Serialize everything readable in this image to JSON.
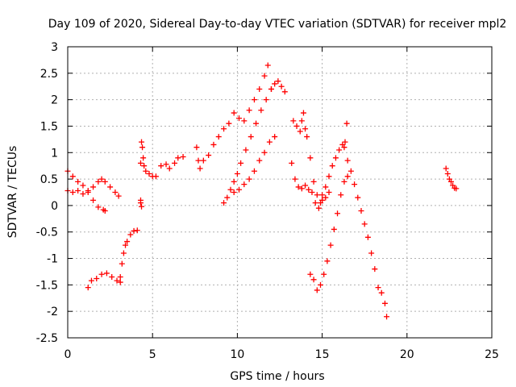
{
  "chart_data": {
    "type": "scatter",
    "title": "Day 109 of 2020, Sidereal Day-to-day VTEC variation (SDTVAR) for receiver mpl2",
    "xlabel": "GPS time / hours",
    "ylabel": "SDTVAR / TECUs",
    "xlim": [
      0,
      25
    ],
    "ylim": [
      -2.5,
      3
    ],
    "xticks": [
      0,
      5,
      10,
      15,
      20,
      25
    ],
    "yticks": [
      -2.5,
      -2,
      -1.5,
      -1,
      -0.5,
      0,
      0.5,
      1,
      1.5,
      2,
      2.5,
      3
    ],
    "grid": true,
    "marker": "+",
    "color": "#ff0000",
    "series": [
      {
        "x": [
          0.0,
          0.3,
          0.6,
          0.9,
          1.2,
          1.5,
          1.8,
          2.1,
          2.2
        ],
        "y": [
          0.65,
          0.55,
          0.45,
          0.38,
          0.25,
          0.1,
          -0.03,
          -0.08,
          -0.1
        ]
      },
      {
        "x": [
          0.0,
          0.3,
          0.6,
          0.9,
          1.2,
          1.5,
          1.8,
          2.0,
          2.2,
          2.5,
          2.8,
          3.0
        ],
        "y": [
          0.28,
          0.25,
          0.28,
          0.22,
          0.28,
          0.35,
          0.45,
          0.5,
          0.45,
          0.35,
          0.25,
          0.18
        ]
      },
      {
        "x": [
          1.2,
          1.4,
          1.7,
          2.0,
          2.3,
          2.6,
          2.9,
          3.1
        ],
        "y": [
          -1.55,
          -1.42,
          -1.38,
          -1.3,
          -1.28,
          -1.35,
          -1.42,
          -1.45
        ]
      },
      {
        "x": [
          3.1,
          3.2,
          3.3,
          3.4,
          3.5,
          3.7,
          3.9,
          4.1
        ],
        "y": [
          -1.35,
          -1.1,
          -0.9,
          -0.75,
          -0.68,
          -0.55,
          -0.48,
          -0.47
        ]
      },
      {
        "x": [
          4.3,
          4.3,
          4.35
        ],
        "y": [
          0.1,
          0.05,
          -0.02
        ]
      },
      {
        "x": [
          4.3,
          4.35,
          4.4,
          4.45,
          4.5,
          4.6,
          4.8,
          5.0,
          5.2,
          5.5,
          5.8,
          6.0,
          6.3,
          6.5,
          6.8
        ],
        "y": [
          0.8,
          1.2,
          1.1,
          0.9,
          0.75,
          0.65,
          0.6,
          0.55,
          0.55,
          0.75,
          0.78,
          0.7,
          0.8,
          0.9,
          0.92
        ]
      },
      {
        "x": [
          7.6,
          7.7,
          7.8,
          8.0,
          8.3,
          8.6,
          8.9,
          9.2,
          9.5,
          9.8,
          10.1,
          10.4,
          10.7,
          11.0,
          11.3,
          11.6,
          11.8
        ],
        "y": [
          1.1,
          0.85,
          0.7,
          0.85,
          0.95,
          1.15,
          1.3,
          1.45,
          1.55,
          1.75,
          1.65,
          1.6,
          1.8,
          2.0,
          2.2,
          2.45,
          2.65
        ]
      },
      {
        "x": [
          9.2,
          9.4,
          9.6,
          9.8,
          10.0,
          10.2,
          10.5,
          10.8,
          11.1,
          11.4,
          11.7,
          12.0
        ],
        "y": [
          0.05,
          0.15,
          0.3,
          0.45,
          0.6,
          0.8,
          1.05,
          1.3,
          1.55,
          1.8,
          2.0,
          2.2
        ]
      },
      {
        "x": [
          12.0,
          12.2,
          12.4,
          12.6,
          12.8
        ],
        "y": [
          2.2,
          2.3,
          2.35,
          2.25,
          2.15
        ]
      },
      {
        "x": [
          9.8,
          10.1,
          10.4,
          10.7,
          11.0,
          11.3,
          11.6,
          11.9,
          12.2
        ],
        "y": [
          0.25,
          0.3,
          0.4,
          0.5,
          0.65,
          0.85,
          1.0,
          1.2,
          1.3
        ]
      },
      {
        "x": [
          13.3,
          13.5,
          13.7,
          13.8,
          13.9,
          14.0,
          14.1,
          14.3,
          14.5,
          14.7,
          14.9,
          15.0
        ],
        "y": [
          1.6,
          1.5,
          1.4,
          1.6,
          1.75,
          1.45,
          1.3,
          0.9,
          0.45,
          0.2,
          0.05,
          0.1
        ]
      },
      {
        "x": [
          13.2,
          13.4,
          13.6,
          13.8,
          14.0,
          14.2,
          14.4,
          14.6,
          14.8,
          15.0,
          15.2,
          15.4
        ],
        "y": [
          0.8,
          0.5,
          0.35,
          0.32,
          0.38,
          0.3,
          0.25,
          0.05,
          -0.05,
          0.1,
          0.15,
          0.25
        ]
      },
      {
        "x": [
          15.0,
          15.2,
          15.4,
          15.6,
          15.8,
          16.0,
          16.2,
          16.35,
          16.45
        ],
        "y": [
          0.2,
          0.35,
          0.55,
          0.75,
          0.9,
          1.05,
          1.15,
          1.2,
          1.55
        ]
      },
      {
        "x": [
          14.3,
          14.5,
          14.7,
          14.9,
          15.1,
          15.3,
          15.5,
          15.7,
          15.9,
          16.1,
          16.3,
          16.5
        ],
        "y": [
          -1.3,
          -1.4,
          -1.6,
          -1.5,
          -1.3,
          -1.05,
          -0.75,
          -0.45,
          -0.15,
          0.2,
          0.45,
          0.55
        ]
      },
      {
        "x": [
          16.3,
          16.5,
          16.7,
          16.9,
          17.1,
          17.3,
          17.5,
          17.7,
          17.9,
          18.1,
          18.3,
          18.5,
          18.7,
          18.8
        ],
        "y": [
          1.1,
          0.85,
          0.65,
          0.4,
          0.15,
          -0.1,
          -0.35,
          -0.6,
          -0.9,
          -1.2,
          -1.55,
          -1.65,
          -1.85,
          -2.1
        ]
      },
      {
        "x": [
          22.3,
          22.4,
          22.5,
          22.6,
          22.7,
          22.8,
          22.9
        ],
        "y": [
          0.7,
          0.6,
          0.5,
          0.45,
          0.38,
          0.33,
          0.32
        ]
      }
    ]
  }
}
